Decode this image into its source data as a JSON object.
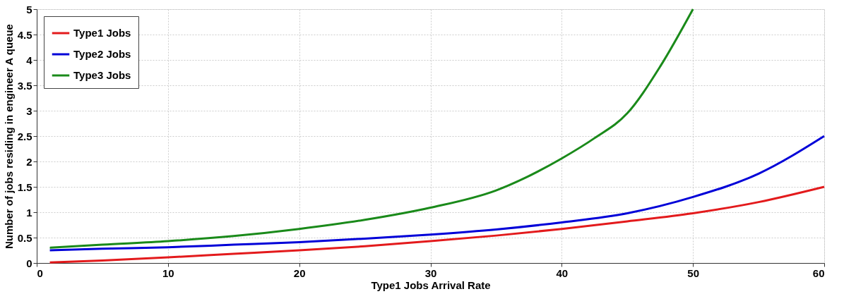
{
  "chart_data": {
    "type": "line",
    "xlabel": "Type1 Jobs Arrival Rate",
    "ylabel": "Number of jobs residing in engineer A queue",
    "xlim": [
      0,
      60
    ],
    "xticks": [
      0,
      10,
      20,
      30,
      40,
      50,
      60
    ],
    "ylim": [
      0,
      5
    ],
    "yticks": [
      0,
      0.5,
      1,
      1.5,
      2,
      2.5,
      3,
      3.5,
      4,
      4.5,
      5
    ],
    "grid": true,
    "legend": "top left",
    "line_style": "solid",
    "marker": "none",
    "series": [
      {
        "name": "Type1 Jobs",
        "color": "#e31a1c",
        "x": [
          1,
          5,
          10,
          15,
          20,
          25,
          30,
          35,
          40,
          45,
          50,
          55,
          60
        ],
        "values": [
          0.01,
          0.05,
          0.11,
          0.18,
          0.25,
          0.33,
          0.43,
          0.54,
          0.67,
          0.82,
          0.98,
          1.2,
          1.5
        ]
      },
      {
        "name": "Type2 Jobs",
        "color": "#0000d8",
        "x": [
          1,
          5,
          10,
          15,
          20,
          25,
          30,
          35,
          40,
          45,
          50,
          55,
          60
        ],
        "values": [
          0.25,
          0.28,
          0.31,
          0.36,
          0.41,
          0.48,
          0.56,
          0.66,
          0.8,
          0.98,
          1.3,
          1.76,
          2.5
        ]
      },
      {
        "name": "Type3 Jobs",
        "color": "#1a8a1a",
        "x": [
          1,
          5,
          10,
          15,
          20,
          25,
          30,
          35,
          40,
          42.5,
          45,
          47.5,
          50
        ],
        "values": [
          0.3,
          0.36,
          0.43,
          0.53,
          0.67,
          0.85,
          1.09,
          1.43,
          2.06,
          2.46,
          2.95,
          3.87,
          5.0
        ]
      }
    ]
  }
}
